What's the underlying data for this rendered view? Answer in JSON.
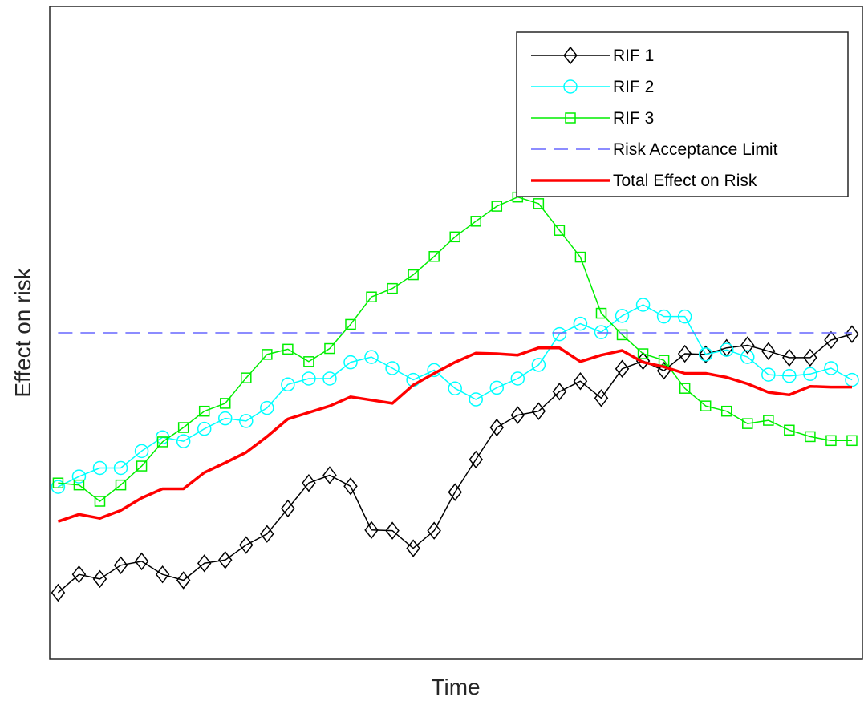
{
  "chart_data": {
    "type": "line",
    "title": "",
    "xlabel": "Time",
    "ylabel": "Effect on risk",
    "x": [
      1,
      2,
      3,
      4,
      5,
      6,
      7,
      8,
      9,
      10,
      11,
      12,
      13,
      14,
      15,
      16,
      17,
      18,
      19,
      20,
      21,
      22,
      23,
      24,
      25,
      26,
      27,
      28,
      29,
      30,
      31,
      32,
      33,
      34,
      35,
      36,
      37,
      38,
      39
    ],
    "xlim": [
      0.6,
      39.5
    ],
    "ylim": [
      0,
      100
    ],
    "grid": false,
    "ticks_visible": false,
    "legend_position": "top-right",
    "series": [
      {
        "name": "RIF 1",
        "color": "#000000",
        "marker": "diamond",
        "line_style": "solid",
        "values": [
          10.2,
          13.0,
          12.3,
          14.4,
          15.0,
          13.0,
          12.1,
          14.7,
          15.2,
          17.5,
          19.2,
          23.1,
          27.0,
          28.2,
          26.5,
          19.8,
          19.7,
          17.0,
          19.7,
          25.6,
          30.6,
          35.5,
          37.4,
          38.0,
          41.0,
          42.6,
          40.0,
          44.5,
          45.7,
          44.2,
          46.8,
          46.7,
          47.7,
          48.1,
          47.2,
          46.2,
          46.2,
          48.9,
          49.8
        ]
      },
      {
        "name": "RIF 2",
        "color": "#00ffff",
        "marker": "circle",
        "line_style": "solid",
        "values": [
          26.4,
          28.0,
          29.3,
          29.3,
          31.9,
          34.0,
          33.4,
          35.3,
          36.9,
          36.5,
          38.5,
          42.1,
          43.0,
          43.0,
          45.5,
          46.3,
          44.6,
          42.8,
          44.3,
          41.5,
          39.8,
          41.6,
          43.0,
          45.1,
          49.8,
          51.4,
          50.1,
          52.6,
          54.3,
          52.5,
          52.5,
          46.7,
          47.4,
          46.3,
          43.6,
          43.4,
          43.7,
          44.6,
          42.8
        ]
      },
      {
        "name": "RIF 3",
        "color": "#00ee00",
        "marker": "square",
        "line_style": "solid",
        "values": [
          27.0,
          26.7,
          24.2,
          26.7,
          29.6,
          33.3,
          35.5,
          38.0,
          39.2,
          43.1,
          46.7,
          47.5,
          45.6,
          47.6,
          51.3,
          55.5,
          56.8,
          58.9,
          61.7,
          64.7,
          67.1,
          69.4,
          70.8,
          69.8,
          65.7,
          61.6,
          53.0,
          49.7,
          46.8,
          45.8,
          41.5,
          38.8,
          38.0,
          36.1,
          36.6,
          35.1,
          34.1,
          33.5,
          33.5
        ]
      },
      {
        "name": "Risk Acceptance Limit",
        "color": "#6666ff",
        "marker": "none",
        "line_style": "dashed",
        "values": [
          50,
          50,
          50,
          50,
          50,
          50,
          50,
          50,
          50,
          50,
          50,
          50,
          50,
          50,
          50,
          50,
          50,
          50,
          50,
          50,
          50,
          50,
          50,
          50,
          50,
          50,
          50,
          50,
          50,
          50,
          50,
          50,
          50,
          50,
          50,
          50,
          50,
          50,
          50
        ]
      },
      {
        "name": "Total Effect on Risk",
        "color": "#ff0000",
        "marker": "none",
        "line_style": "solid",
        "values": [
          21.1,
          22.2,
          21.6,
          22.8,
          24.7,
          26.1,
          26.1,
          28.6,
          30.1,
          31.7,
          34.1,
          36.8,
          37.8,
          38.8,
          40.2,
          39.7,
          39.2,
          42.0,
          43.8,
          45.5,
          46.9,
          46.8,
          46.6,
          47.7,
          47.7,
          45.6,
          46.6,
          47.3,
          45.5,
          44.8,
          43.8,
          43.8,
          43.2,
          42.2,
          40.9,
          40.5,
          41.8,
          41.7,
          41.7
        ]
      }
    ]
  }
}
